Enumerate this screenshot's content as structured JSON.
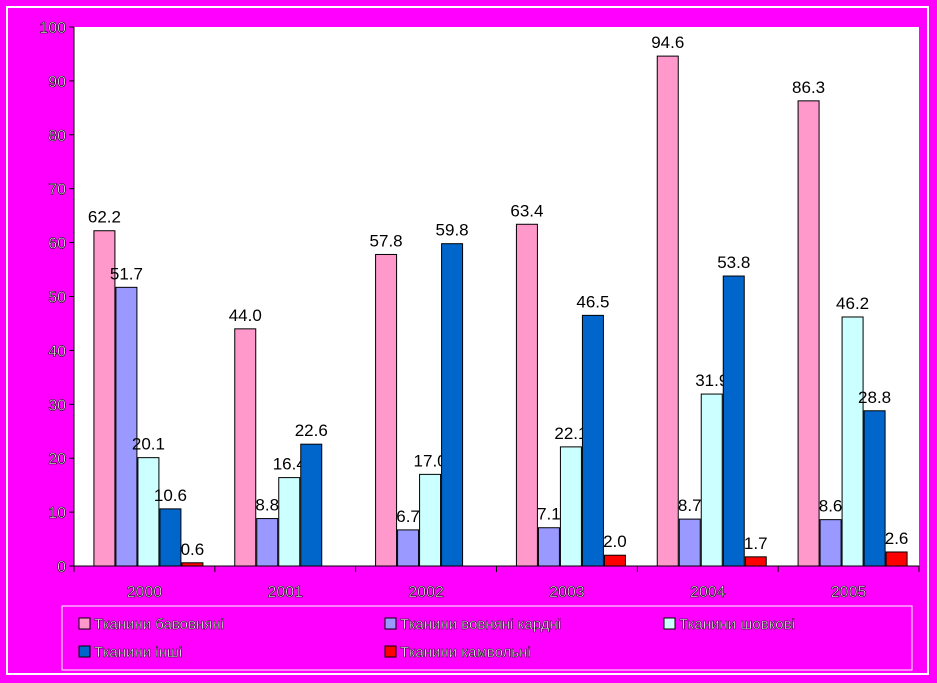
{
  "chart_data": {
    "type": "bar",
    "categories": [
      "2000",
      "2001",
      "2002",
      "2003",
      "2004",
      "2005"
    ],
    "series": [
      {
        "name": "Тканини бавовняні",
        "color": "#ff99cc",
        "values": [
          62.2,
          44.0,
          57.8,
          63.4,
          94.6,
          86.3
        ]
      },
      {
        "name": "Тканини вовняні кардні",
        "color": "#9999ff",
        "values": [
          51.7,
          8.8,
          6.7,
          7.1,
          8.7,
          8.6
        ]
      },
      {
        "name": "Тканини шовкові",
        "color": "#ccffff",
        "values": [
          20.1,
          16.4,
          17.0,
          22.1,
          31.9,
          46.2
        ]
      },
      {
        "name": "Тканини інші",
        "color": "#0066cc",
        "values": [
          10.6,
          22.6,
          59.8,
          46.5,
          53.8,
          28.8
        ]
      },
      {
        "name": "Тканини камвольні",
        "color": "#ff0000",
        "values": [
          0.6,
          null,
          null,
          2.0,
          1.7,
          2.6
        ]
      }
    ],
    "data_labels": [
      [
        "62.2",
        "44.0",
        "57.8",
        "63.4",
        "94.6",
        "86.3"
      ],
      [
        "51.7",
        "8.8",
        "6.7",
        "7.1",
        "8.7",
        "8.6"
      ],
      [
        "20.1",
        "16.4",
        "17.0",
        "22.1",
        "31.9",
        "46.2"
      ],
      [
        "10.6",
        "22.6",
        "59.8",
        "46.5",
        "53.8",
        "28.8"
      ],
      [
        "0.6",
        "",
        "",
        "2.0",
        "1.7",
        "2.6"
      ]
    ],
    "y_ticks": [
      "0",
      "10",
      "20",
      "30",
      "40",
      "50",
      "60",
      "70",
      "80",
      "90",
      "100"
    ],
    "ylim": [
      0,
      100
    ],
    "grid": false,
    "legend_position": "bottom",
    "plot_background": "#ffffff",
    "page_background": "#ff00ff"
  }
}
